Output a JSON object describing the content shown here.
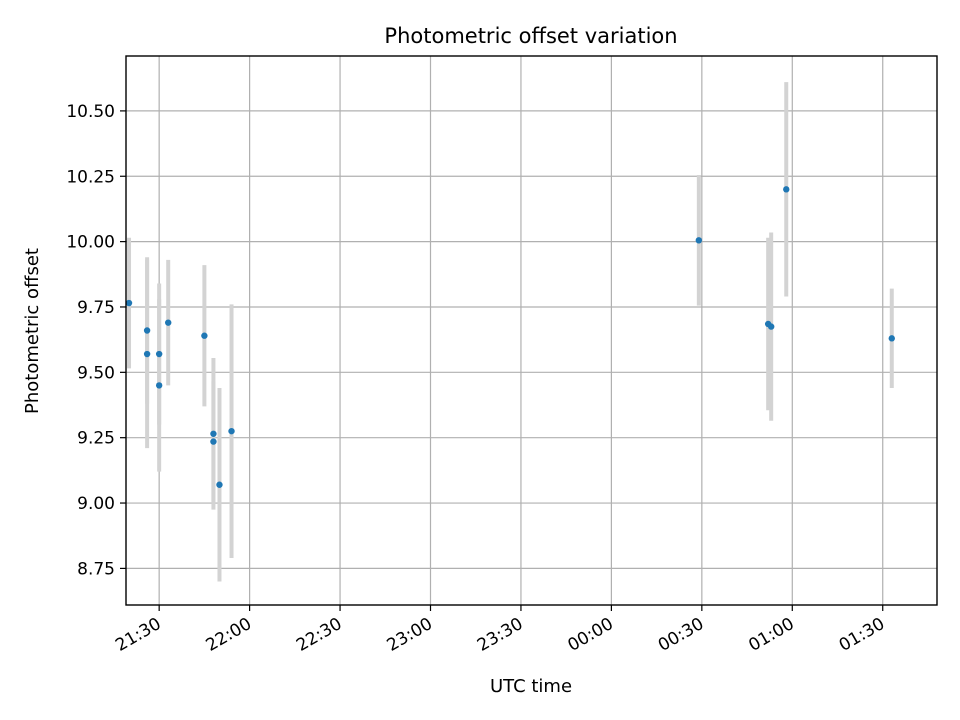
{
  "chart_data": {
    "type": "scatter",
    "title": "Photometric offset variation",
    "xlabel": "UTC time",
    "ylabel": "Photometric offset",
    "grid": true,
    "legend": "none",
    "x_tick_labels": [
      "21:30",
      "22:00",
      "22:30",
      "23:00",
      "23:30",
      "00:00",
      "00:30",
      "01:00",
      "01:30"
    ],
    "y_tick_labels": [
      "8.75",
      "9.00",
      "9.25",
      "9.50",
      "9.75",
      "10.00",
      "10.25",
      "10.50"
    ],
    "y_ticks": [
      8.75,
      9.0,
      9.25,
      9.5,
      9.75,
      10.0,
      10.25,
      10.5
    ],
    "xlim": [
      "21:19",
      "01:48"
    ],
    "ylim": [
      8.61,
      10.71
    ],
    "colors": {
      "point": "#1f77b4",
      "errorbar": "#d3d3d3",
      "grid": "#b0b0b0"
    },
    "series": [
      {
        "points": [
          {
            "x": "21:20",
            "y": 9.765,
            "err": 0.25
          },
          {
            "x": "21:26",
            "y": 9.66,
            "err": 0.28
          },
          {
            "x": "21:26",
            "y": 9.57,
            "err": 0.36
          },
          {
            "x": "21:30",
            "y": 9.57,
            "err": 0.27
          },
          {
            "x": "21:30",
            "y": 9.45,
            "err": 0.33
          },
          {
            "x": "21:33",
            "y": 9.69,
            "err": 0.24
          },
          {
            "x": "21:45",
            "y": 9.64,
            "err": 0.27
          },
          {
            "x": "21:48",
            "y": 9.235,
            "err": 0.23
          },
          {
            "x": "21:48",
            "y": 9.265,
            "err": 0.29
          },
          {
            "x": "21:50",
            "y": 9.07,
            "err": 0.37
          },
          {
            "x": "21:54",
            "y": 9.275,
            "err": 0.485
          },
          {
            "x": "00:29",
            "y": 10.005,
            "err": 0.25
          },
          {
            "x": "00:52",
            "y": 9.685,
            "err": 0.33
          },
          {
            "x": "00:53",
            "y": 9.675,
            "err": 0.36
          },
          {
            "x": "00:58",
            "y": 10.2,
            "err": 0.41
          },
          {
            "x": "01:33",
            "y": 9.63,
            "err": 0.19
          }
        ]
      }
    ]
  }
}
